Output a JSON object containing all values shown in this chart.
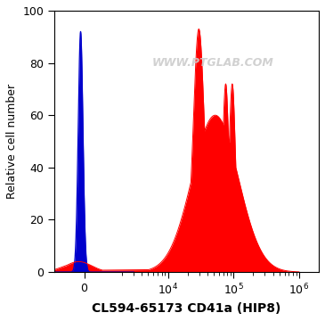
{
  "title": "",
  "xlabel": "CL594-65173 CD41a (HIP8)",
  "ylabel": "Relative cell number",
  "ylim": [
    0,
    100
  ],
  "yticks": [
    0,
    20,
    40,
    60,
    80,
    100
  ],
  "watermark": "WWW.PTGLAB.COM",
  "blue_color": "#0000cc",
  "red_color": "#ff0000",
  "background_color": "#ffffff",
  "xlabel_fontsize": 10,
  "ylabel_fontsize": 9,
  "tick_fontsize": 9,
  "linthresh": 1000,
  "linscale": 0.25
}
